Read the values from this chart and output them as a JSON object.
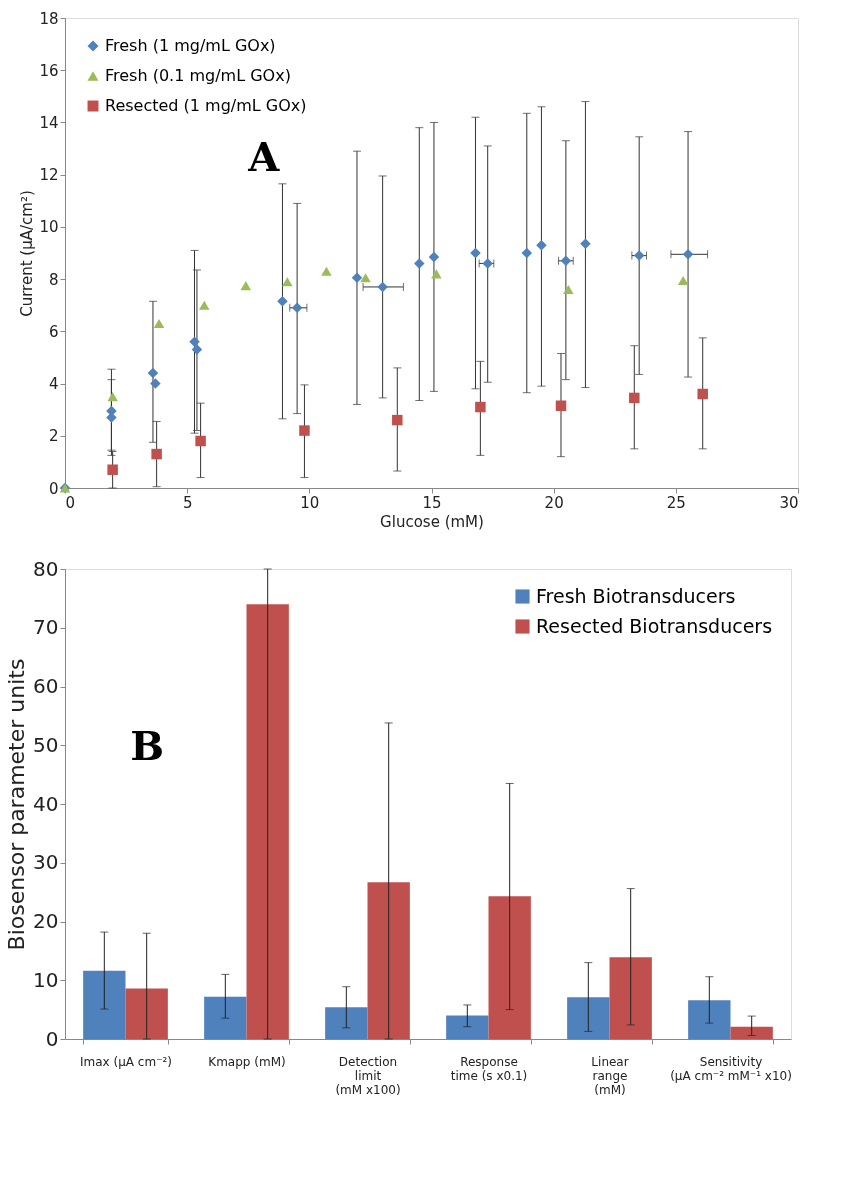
{
  "chart_data": [
    {
      "type": "scatter",
      "xlabel": "Glucose (mM)",
      "ylabel": "Current (µA/cm²)",
      "xlim": [
        0,
        30
      ],
      "xticks": [
        0,
        5,
        10,
        15,
        20,
        25,
        30
      ],
      "ylim": [
        0,
        18
      ],
      "yticks": [
        0,
        2,
        4,
        6,
        8,
        10,
        12,
        14,
        16,
        18
      ],
      "legend": "top left",
      "grid": false,
      "annotations": [
        "A"
      ],
      "series": [
        {
          "name": "Fresh (1 mg/mL GOx)",
          "color": "#4f81bd",
          "marker": "diamond",
          "x": [
            0,
            1.9,
            1.9,
            3.6,
            3.7,
            5.3,
            5.4,
            8.9,
            9.5,
            11.95,
            13.0,
            14.5,
            15.1,
            16.8,
            17.3,
            18.9,
            19.5,
            20.5,
            21.3,
            23.5,
            25.5
          ],
          "values": [
            0,
            2.95,
            2.7,
            4.4,
            4.0,
            5.6,
            5.3,
            7.15,
            6.9,
            8.05,
            7.7,
            8.6,
            8.85,
            9.0,
            8.6,
            9.0,
            9.3,
            8.7,
            9.35,
            8.9,
            8.95
          ],
          "errors": [
            null,
            [
              1.45,
              4.55
            ],
            [
              1.25,
              4.15
            ],
            [
              1.75,
              7.15
            ],
            null,
            [
              2.1,
              9.1
            ],
            [
              2.2,
              8.35
            ],
            [
              2.65,
              11.65
            ],
            [
              2.85,
              10.9
            ],
            [
              3.2,
              12.9
            ],
            [
              3.45,
              11.95
            ],
            [
              3.35,
              13.8
            ],
            [
              3.7,
              14.0
            ],
            [
              3.8,
              14.2
            ],
            [
              4.05,
              13.1
            ],
            [
              3.65,
              14.35
            ],
            [
              3.9,
              14.6
            ],
            [
              4.15,
              13.3
            ],
            [
              3.85,
              14.8
            ],
            [
              4.35,
              13.45
            ],
            [
              4.25,
              13.65
            ]
          ],
          "xerrors": [
            null,
            null,
            null,
            null,
            null,
            null,
            null,
            null,
            [
              9.2,
              9.9
            ],
            null,
            [
              12.2,
              13.85
            ],
            null,
            null,
            null,
            [
              16.95,
              17.55
            ],
            null,
            null,
            [
              20.2,
              20.8
            ],
            null,
            [
              23.2,
              23.8
            ],
            [
              24.8,
              26.3
            ]
          ]
        },
        {
          "name": "Fresh (0.1 mg/mL GOx)",
          "color": "#9bbb59",
          "marker": "triangle",
          "x": [
            0,
            1.95,
            3.85,
            5.7,
            7.4,
            9.1,
            10.7,
            12.3,
            15.2,
            20.6,
            25.3
          ],
          "values": [
            0,
            3.5,
            6.3,
            7.0,
            7.75,
            7.9,
            8.3,
            8.05,
            8.2,
            7.6,
            7.95
          ]
        },
        {
          "name": "Resected (1 mg/mL GOx)",
          "color": "#c0504d",
          "marker": "square",
          "x": [
            1.95,
            3.75,
            5.55,
            9.8,
            13.6,
            17.0,
            20.3,
            23.3,
            26.1
          ],
          "values": [
            0.7,
            1.3,
            1.8,
            2.2,
            2.6,
            3.1,
            3.15,
            3.45,
            3.6
          ],
          "errors": [
            [
              0,
              1.4
            ],
            [
              0.05,
              2.55
            ],
            [
              0.4,
              3.25
            ],
            [
              0.4,
              3.95
            ],
            [
              0.65,
              4.6
            ],
            [
              1.25,
              4.85
            ],
            [
              1.2,
              5.15
            ],
            [
              1.5,
              5.45
            ],
            [
              1.5,
              5.75
            ]
          ]
        }
      ]
    },
    {
      "type": "bar",
      "ylabel": "Biosensor parameter units",
      "ylim": [
        0,
        80
      ],
      "yticks": [
        0,
        10,
        20,
        30,
        40,
        50,
        60,
        70,
        80
      ],
      "legend": "top right",
      "grid": false,
      "annotations": [
        "B"
      ],
      "categories": [
        "Imax (µA cm⁻²)",
        "Kmapp (mM)",
        "Detection\nlimit\n(mM x100)",
        "Response\ntime (s x0.1)",
        "Linear\nrange\n(mM)",
        "Sensitivity\n(µA cm⁻² mM⁻¹ x10)"
      ],
      "series": [
        {
          "name": "Fresh Biotransducers",
          "color": "#4f81bd",
          "values": [
            11.6,
            7.2,
            5.4,
            4.0,
            7.1,
            6.6
          ],
          "errors": [
            [
              5.1,
              18.2
            ],
            [
              3.55,
              11.0
            ],
            [
              1.9,
              8.9
            ],
            [
              2.1,
              5.8
            ],
            [
              1.3,
              13.0
            ],
            [
              2.7,
              10.6
            ]
          ]
        },
        {
          "name": "Resected Biotransducers",
          "color": "#c0504d",
          "values": [
            8.6,
            74.0,
            26.7,
            24.3,
            13.9,
            2.1
          ],
          "errors": [
            [
              0,
              18.0
            ],
            [
              0,
              80
            ],
            [
              0,
              53.8
            ],
            [
              5.0,
              43.5
            ],
            [
              2.4,
              25.6
            ],
            [
              0.6,
              3.9
            ]
          ]
        }
      ]
    }
  ]
}
